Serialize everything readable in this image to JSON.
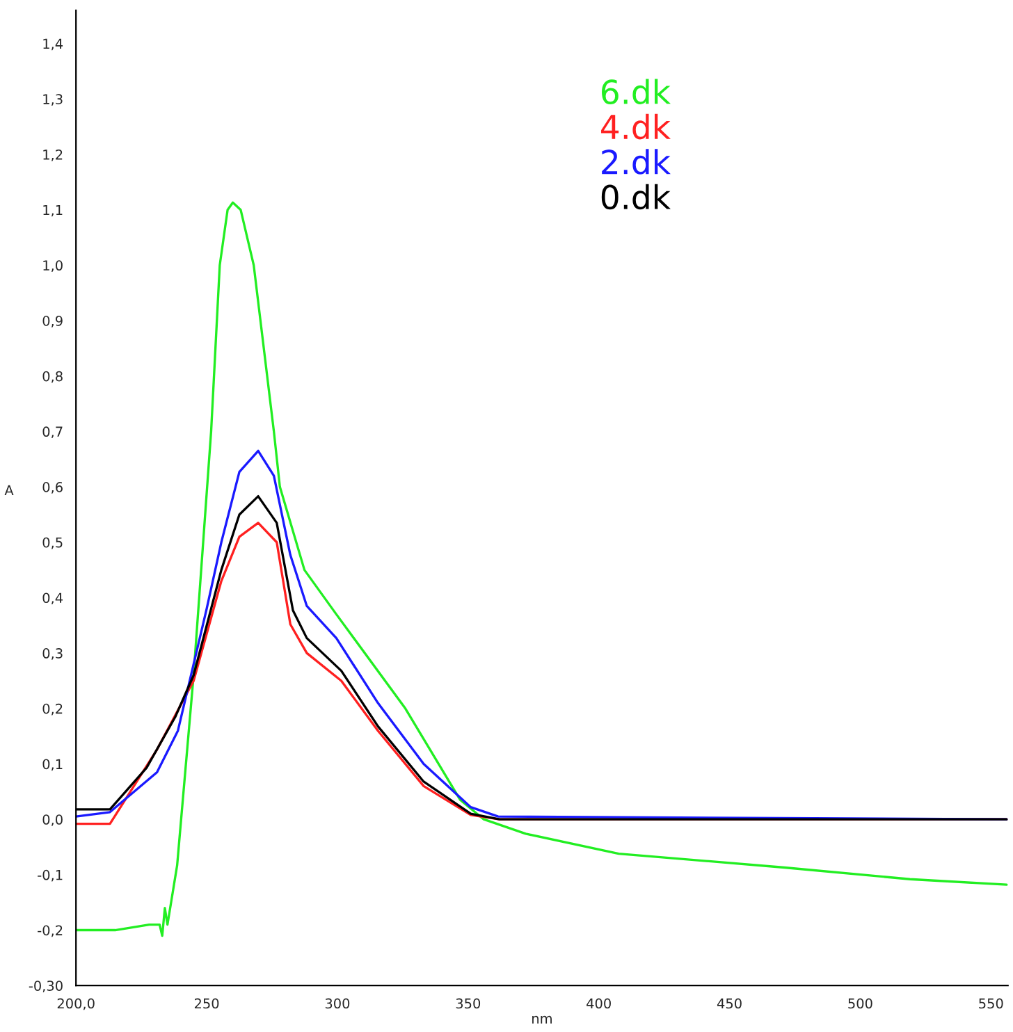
{
  "chart_data": {
    "type": "line",
    "xlabel": "nm",
    "ylabel": "A",
    "xlim": [
      200,
      556.5
    ],
    "ylim": [
      -0.3,
      1.46
    ],
    "xticks": [
      {
        "value": 200,
        "label": "200,0"
      },
      250,
      300,
      350,
      400,
      450,
      500,
      550
    ],
    "yticks": [
      {
        "value": -0.3,
        "label": "-0,30"
      },
      {
        "value": -0.2,
        "label": "-0,2"
      },
      {
        "value": -0.1,
        "label": "-0,1"
      },
      {
        "value": 0,
        "label": "0,0"
      },
      {
        "value": 0.1,
        "label": "0,1"
      },
      {
        "value": 0.2,
        "label": "0,2"
      },
      {
        "value": 0.3,
        "label": "0,3"
      },
      {
        "value": 0.4,
        "label": "0,4"
      },
      {
        "value": 0.5,
        "label": "0,5"
      },
      {
        "value": 0.6,
        "label": "0,6"
      },
      {
        "value": 0.7,
        "label": "0,7"
      },
      {
        "value": 0.8,
        "label": "0,8"
      },
      {
        "value": 0.9,
        "label": "0,9"
      },
      {
        "value": 1.0,
        "label": "1,0"
      },
      {
        "value": 1.1,
        "label": "1,1"
      },
      {
        "value": 1.2,
        "label": "1,2"
      },
      {
        "value": 1.3,
        "label": "1,3"
      },
      {
        "value": 1.4,
        "label": "1,4"
      }
    ],
    "grid": false,
    "legend": "top",
    "marker": "none",
    "line_style": "solid",
    "series": [
      {
        "name": "6.dk",
        "color": "#22ee22",
        "x": [
          200,
          215,
          228,
          232,
          233,
          234,
          235,
          238.7,
          245,
          251.7,
          255,
          258,
          260,
          263,
          268,
          275.7,
          278,
          287.4,
          299.6,
          326,
          347,
          356,
          372,
          407.6,
          471,
          519,
          556
        ],
        "values": [
          -0.2,
          -0.2,
          -0.19,
          -0.19,
          -0.21,
          -0.16,
          -0.19,
          -0.083,
          0.26,
          0.7,
          1.0,
          1.1,
          1.113,
          1.1,
          1.0,
          0.7,
          0.6,
          0.45,
          0.37,
          0.2,
          0.035,
          0.0,
          -0.026,
          -0.062,
          -0.087,
          -0.108,
          -0.118
        ]
      },
      {
        "name": "4.dk",
        "color": "#ff2020",
        "x": [
          200,
          213,
          231,
          245,
          255.6,
          262.5,
          269.7,
          276.8,
          282,
          288.3,
          301.5,
          315.5,
          333,
          351,
          362,
          556
        ],
        "values": [
          -0.008,
          -0.008,
          0.126,
          0.25,
          0.43,
          0.51,
          0.535,
          0.5,
          0.352,
          0.3,
          0.25,
          0.16,
          0.06,
          0.008,
          0.0,
          0.0
        ]
      },
      {
        "name": "2.dk",
        "color": "#1a1aff",
        "x": [
          200,
          213,
          231,
          239,
          250,
          255.6,
          262.5,
          269.7,
          275.7,
          282,
          288.3,
          299.6,
          315.5,
          333,
          351,
          361.5,
          556
        ],
        "values": [
          0.005,
          0.013,
          0.085,
          0.16,
          0.38,
          0.5,
          0.627,
          0.665,
          0.62,
          0.477,
          0.385,
          0.327,
          0.21,
          0.1,
          0.022,
          0.005,
          0.0
        ]
      },
      {
        "name": "0.dk",
        "color": "#000000",
        "x": [
          200,
          213,
          227,
          238,
          245,
          255.6,
          262.5,
          269.7,
          276.8,
          283,
          288.3,
          301.5,
          315.5,
          333,
          351,
          362,
          556
        ],
        "values": [
          0.018,
          0.018,
          0.093,
          0.185,
          0.26,
          0.45,
          0.55,
          0.583,
          0.535,
          0.377,
          0.327,
          0.268,
          0.168,
          0.068,
          0.01,
          0.0,
          0.0
        ]
      }
    ]
  }
}
